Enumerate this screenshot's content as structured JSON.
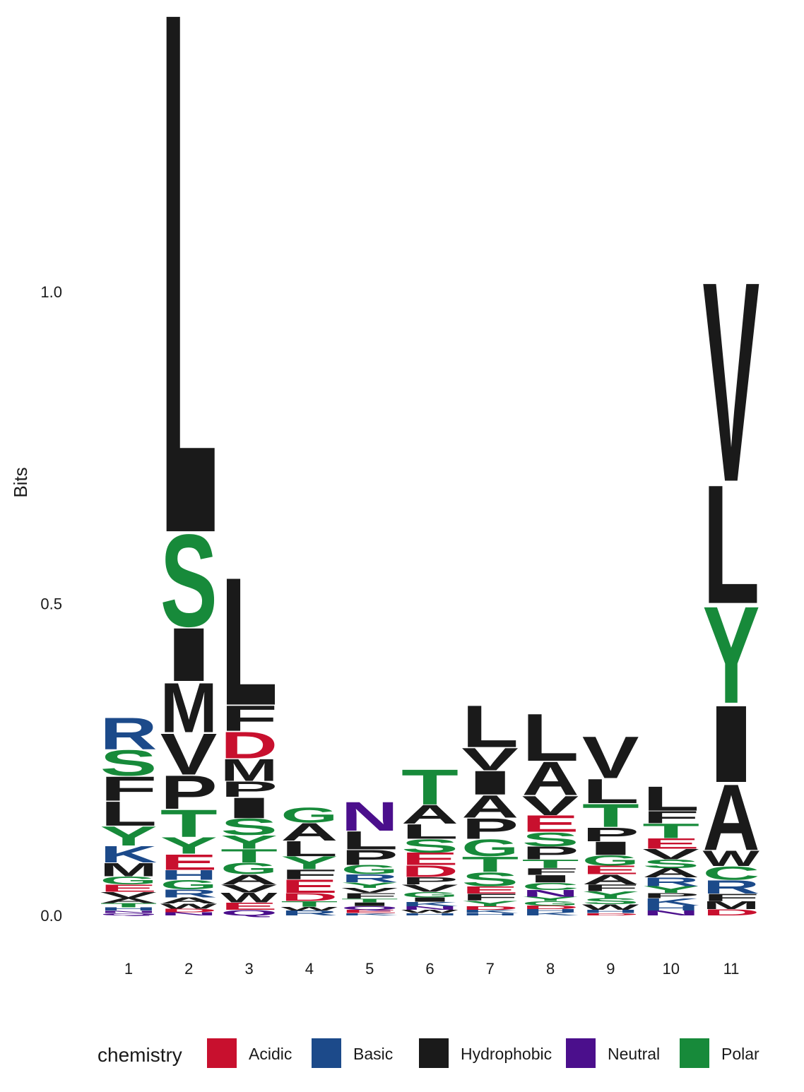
{
  "chart_data": {
    "type": "sequence-logo",
    "ylabel": "Bits",
    "ylim": [
      0,
      1.38
    ],
    "y_ticks": [
      "0.0",
      "0.5",
      "1.0"
    ],
    "positions": [
      "1",
      "2",
      "3",
      "4",
      "5",
      "6",
      "7",
      "8",
      "9",
      "10",
      "11"
    ],
    "legend_title": "chemistry",
    "legend": [
      {
        "name": "Acidic",
        "color": "#c8102e"
      },
      {
        "name": "Basic",
        "color": "#1c4a8a"
      },
      {
        "name": "Hydrophobic",
        "color": "#1a1a1a"
      },
      {
        "name": "Neutral",
        "color": "#4b0f8c"
      },
      {
        "name": "Polar",
        "color": "#178a3a"
      }
    ],
    "chemistry": {
      "A": "Hydrophobic",
      "V": "Hydrophobic",
      "L": "Hydrophobic",
      "I": "Hydrophobic",
      "P": "Hydrophobic",
      "W": "Hydrophobic",
      "F": "Hydrophobic",
      "M": "Hydrophobic",
      "G": "Polar",
      "S": "Polar",
      "T": "Polar",
      "Y": "Polar",
      "C": "Polar",
      "N": "Neutral",
      "Q": "Neutral",
      "K": "Basic",
      "R": "Basic",
      "H": "Basic",
      "D": "Acidic",
      "E": "Acidic"
    },
    "columns": [
      [
        [
          "Q",
          0.004
        ],
        [
          "N",
          0.004
        ],
        [
          "H",
          0.005
        ],
        [
          "T",
          0.007
        ],
        [
          "A",
          0.008
        ],
        [
          "V",
          0.01
        ],
        [
          "E",
          0.012
        ],
        [
          "G",
          0.013
        ],
        [
          "M",
          0.022
        ],
        [
          "K",
          0.027
        ],
        [
          "Y",
          0.032
        ],
        [
          "L",
          0.04
        ],
        [
          "F",
          0.04
        ],
        [
          "S",
          0.042
        ],
        [
          "R",
          0.052
        ]
      ],
      [
        [
          "N",
          0.005
        ],
        [
          "D",
          0.006
        ],
        [
          "W",
          0.008
        ],
        [
          "A",
          0.01
        ],
        [
          "R",
          0.013
        ],
        [
          "G",
          0.015
        ],
        [
          "H",
          0.016
        ],
        [
          "E",
          0.026
        ],
        [
          "Y",
          0.027
        ],
        [
          "T",
          0.045
        ],
        [
          "P",
          0.055
        ],
        [
          "V",
          0.068
        ],
        [
          "M",
          0.082
        ],
        [
          "I",
          0.088
        ],
        [
          "S",
          0.152
        ],
        [
          "L",
          0.863
        ]
      ],
      [
        [
          "Q",
          0.009
        ],
        [
          "E",
          0.012
        ],
        [
          "W",
          0.016
        ],
        [
          "V",
          0.013
        ],
        [
          "A",
          0.016
        ],
        [
          "G",
          0.019
        ],
        [
          "T",
          0.022
        ],
        [
          "Y",
          0.022
        ],
        [
          "S",
          0.027
        ],
        [
          "I",
          0.034
        ],
        [
          "P",
          0.026
        ],
        [
          "M",
          0.036
        ],
        [
          "D",
          0.044
        ],
        [
          "F",
          0.042
        ],
        [
          "L",
          0.211
        ]
      ],
      [
        [
          "R",
          0.008
        ],
        [
          "W",
          0.006
        ],
        [
          "T",
          0.009
        ],
        [
          "D",
          0.013
        ],
        [
          "E",
          0.022
        ],
        [
          "F",
          0.016
        ],
        [
          "Y",
          0.021
        ],
        [
          "L",
          0.025
        ],
        [
          "A",
          0.029
        ],
        [
          "G",
          0.025
        ]
      ],
      [
        [
          "K",
          0.004
        ],
        [
          "E",
          0.005
        ],
        [
          "Q",
          0.006
        ],
        [
          "I",
          0.006
        ],
        [
          "T",
          0.006
        ],
        [
          "F",
          0.009
        ],
        [
          "V",
          0.008
        ],
        [
          "Y",
          0.009
        ],
        [
          "R",
          0.013
        ],
        [
          "G",
          0.015
        ],
        [
          "P",
          0.025
        ],
        [
          "L",
          0.03
        ],
        [
          "N",
          0.048
        ]
      ],
      [
        [
          "H",
          0.004
        ],
        [
          "W",
          0.005
        ],
        [
          "N",
          0.006
        ],
        [
          "K",
          0.007
        ],
        [
          "I",
          0.007
        ],
        [
          "G",
          0.009
        ],
        [
          "V",
          0.012
        ],
        [
          "P",
          0.012
        ],
        [
          "D",
          0.019
        ],
        [
          "E",
          0.02
        ],
        [
          "S",
          0.022
        ],
        [
          "L",
          0.024
        ],
        [
          "A",
          0.031
        ],
        [
          "T",
          0.058
        ]
      ],
      [
        [
          "H",
          0.004
        ],
        [
          "K",
          0.005
        ],
        [
          "D",
          0.006
        ],
        [
          "Y",
          0.009
        ],
        [
          "F",
          0.011
        ],
        [
          "E",
          0.012
        ],
        [
          "S",
          0.023
        ],
        [
          "T",
          0.025
        ],
        [
          "G",
          0.028
        ],
        [
          "P",
          0.034
        ],
        [
          "A",
          0.037
        ],
        [
          "I",
          0.039
        ],
        [
          "V",
          0.037
        ],
        [
          "L",
          0.069
        ]
      ],
      [
        [
          "K",
          0.005
        ],
        [
          "H",
          0.005
        ],
        [
          "D",
          0.006
        ],
        [
          "G",
          0.007
        ],
        [
          "Y",
          0.007
        ],
        [
          "N",
          0.011
        ],
        [
          "C",
          0.012
        ],
        [
          "I",
          0.012
        ],
        [
          "F",
          0.011
        ],
        [
          "T",
          0.014
        ],
        [
          "P",
          0.021
        ],
        [
          "S",
          0.023
        ],
        [
          "E",
          0.027
        ],
        [
          "V",
          0.032
        ],
        [
          "A",
          0.055
        ],
        [
          "L",
          0.078
        ]
      ],
      [
        [
          "D",
          0.004
        ],
        [
          "H",
          0.005
        ],
        [
          "W",
          0.009
        ],
        [
          "S",
          0.01
        ],
        [
          "Y",
          0.011
        ],
        [
          "F",
          0.011
        ],
        [
          "A",
          0.016
        ],
        [
          "E",
          0.014
        ],
        [
          "G",
          0.017
        ],
        [
          "I",
          0.022
        ],
        [
          "P",
          0.023
        ],
        [
          "T",
          0.038
        ],
        [
          "L",
          0.04
        ],
        [
          "V",
          0.069
        ]
      ],
      [
        [
          "N",
          0.008
        ],
        [
          "H",
          0.008
        ],
        [
          "K",
          0.012
        ],
        [
          "P",
          0.008
        ],
        [
          "Y",
          0.011
        ],
        [
          "R",
          0.014
        ],
        [
          "A",
          0.015
        ],
        [
          "S",
          0.014
        ],
        [
          "V",
          0.017
        ],
        [
          "E",
          0.017
        ],
        [
          "T",
          0.024
        ],
        [
          "F",
          0.02
        ],
        [
          "L",
          0.04
        ]
      ],
      [
        [
          "D",
          0.01
        ],
        [
          "M",
          0.013
        ],
        [
          "F",
          0.012
        ],
        [
          "R",
          0.022
        ],
        [
          "C",
          0.022
        ],
        [
          "W",
          0.026
        ],
        [
          "A",
          0.109
        ],
        [
          "I",
          0.127
        ],
        [
          "Y",
          0.16
        ],
        [
          "L",
          0.196
        ],
        [
          "V",
          0.33
        ]
      ]
    ]
  }
}
